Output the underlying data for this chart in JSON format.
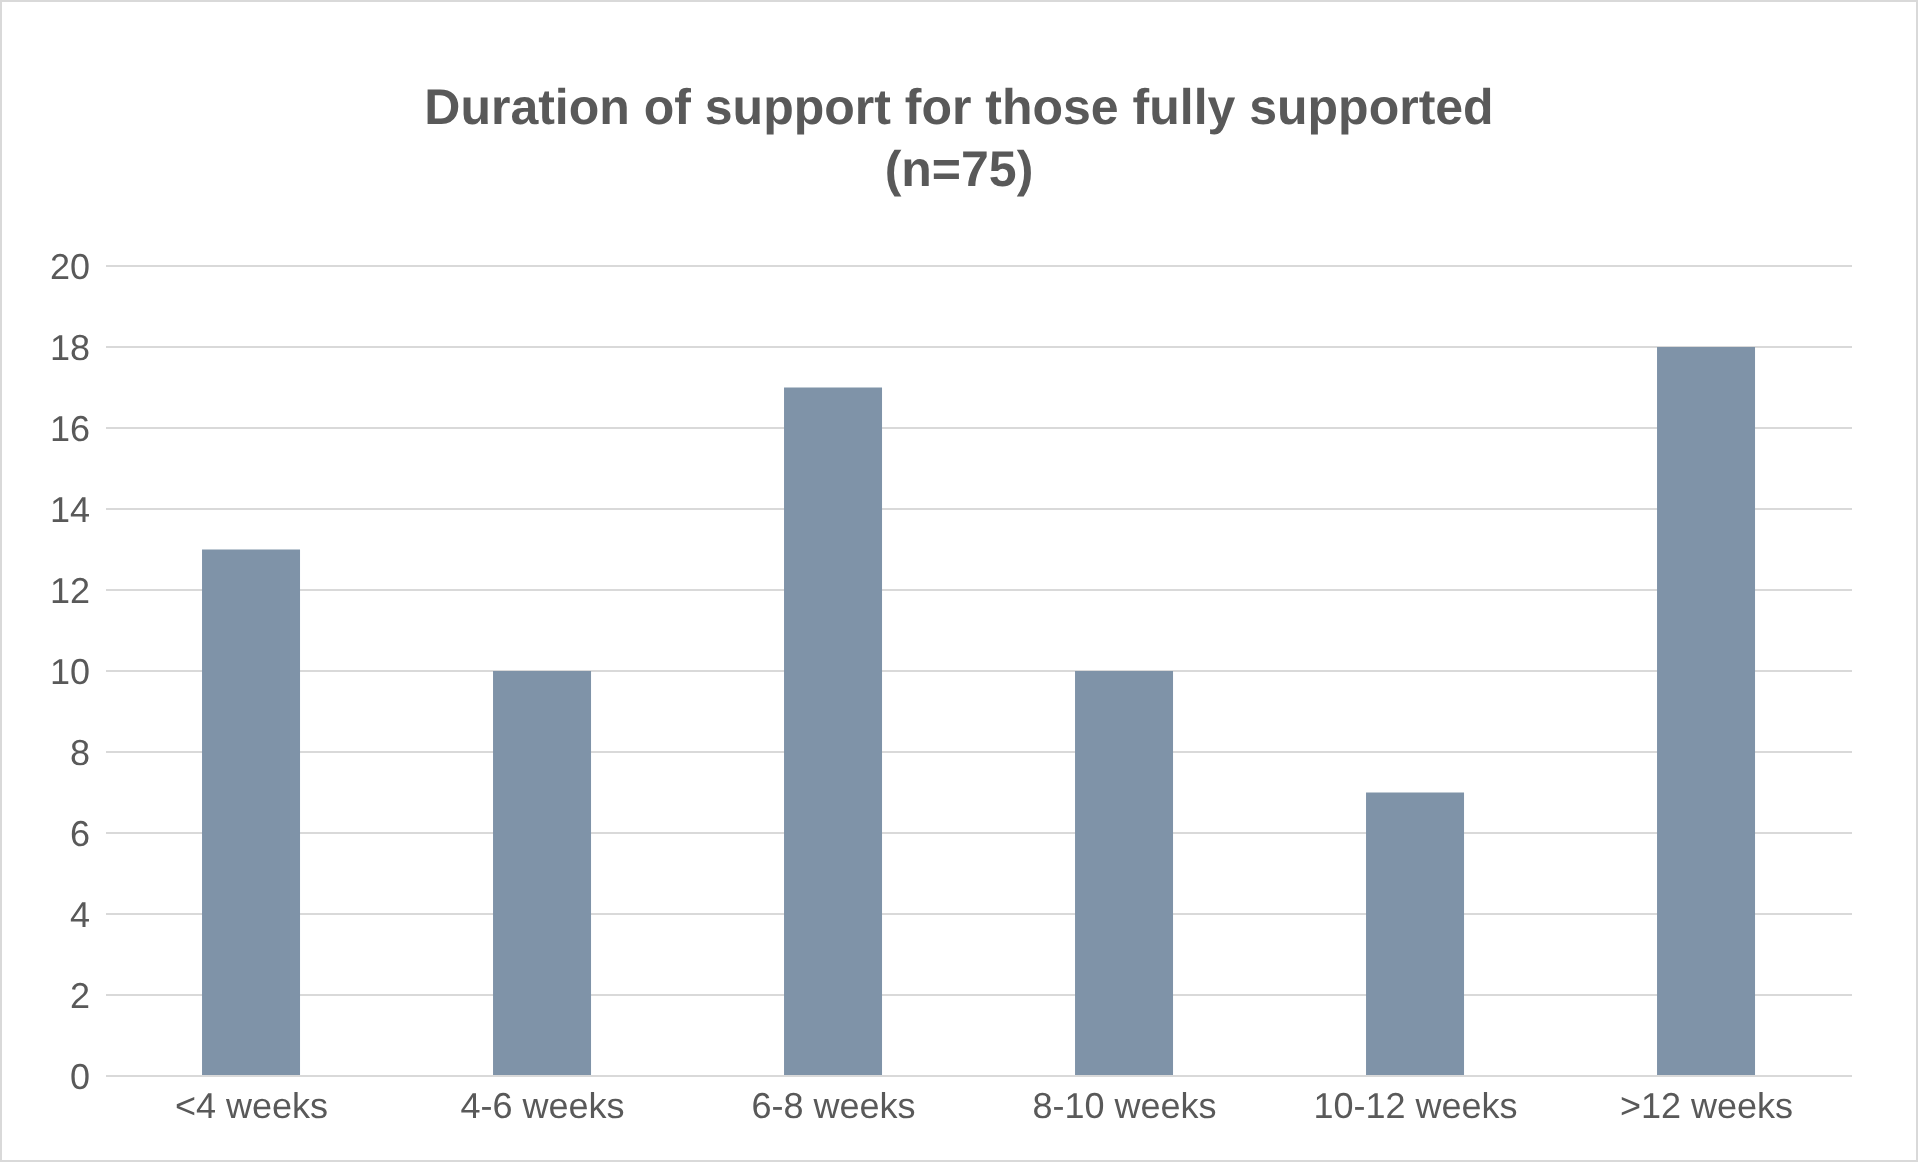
{
  "chart_data": {
    "type": "bar",
    "title": "Duration of support for those fully supported (n=75)",
    "categories": [
      "<4 weeks",
      "4-6 weeks",
      "6-8 weeks",
      "8-10 weeks",
      "10-12 weeks",
      ">12 weeks"
    ],
    "values": [
      13,
      10,
      17,
      10,
      7,
      18
    ],
    "color": "#7f93a8",
    "ylim": [
      0,
      20
    ],
    "yticks": [
      0,
      2,
      4,
      6,
      8,
      10,
      12,
      14,
      16,
      18,
      20
    ],
    "grid": "y"
  }
}
